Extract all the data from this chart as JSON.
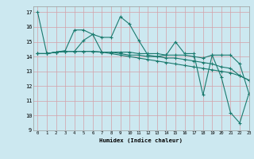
{
  "xlabel": "Humidex (Indice chaleur)",
  "bg_color": "#cce8f0",
  "grid_color": "#d4a0a8",
  "line_color": "#1a7a6e",
  "xlim": [
    -0.5,
    23
  ],
  "ylim": [
    9,
    17.4
  ],
  "yticks": [
    9,
    10,
    11,
    12,
    13,
    14,
    15,
    16,
    17
  ],
  "xticks": [
    0,
    1,
    2,
    3,
    4,
    5,
    6,
    7,
    8,
    9,
    10,
    11,
    12,
    13,
    14,
    15,
    16,
    17,
    18,
    19,
    20,
    21,
    22,
    23
  ],
  "line1": [
    17.0,
    14.2,
    14.3,
    14.4,
    15.8,
    15.8,
    15.5,
    15.3,
    15.3,
    16.7,
    16.2,
    15.1,
    14.1,
    14.0,
    14.1,
    15.0,
    14.2,
    14.2,
    11.4,
    14.1,
    12.6,
    10.2,
    9.5,
    11.5
  ],
  "line2": [
    14.2,
    14.2,
    14.3,
    14.35,
    14.35,
    15.1,
    15.5,
    14.3,
    14.3,
    14.3,
    14.3,
    14.2,
    14.2,
    14.2,
    14.1,
    14.1,
    14.1,
    14.0,
    13.9,
    14.1,
    14.1,
    14.1,
    13.5,
    11.5
  ],
  "line3": [
    14.2,
    14.2,
    14.3,
    14.35,
    14.35,
    14.35,
    14.35,
    14.3,
    14.3,
    14.2,
    14.1,
    14.1,
    14.0,
    14.0,
    13.9,
    13.9,
    13.8,
    13.7,
    13.6,
    13.5,
    13.3,
    13.2,
    12.7,
    12.4
  ],
  "line4": [
    14.2,
    14.2,
    14.3,
    14.35,
    14.35,
    14.35,
    14.35,
    14.3,
    14.2,
    14.1,
    14.0,
    13.9,
    13.8,
    13.7,
    13.6,
    13.5,
    13.4,
    13.3,
    13.2,
    13.1,
    13.0,
    12.9,
    12.7,
    12.4
  ]
}
